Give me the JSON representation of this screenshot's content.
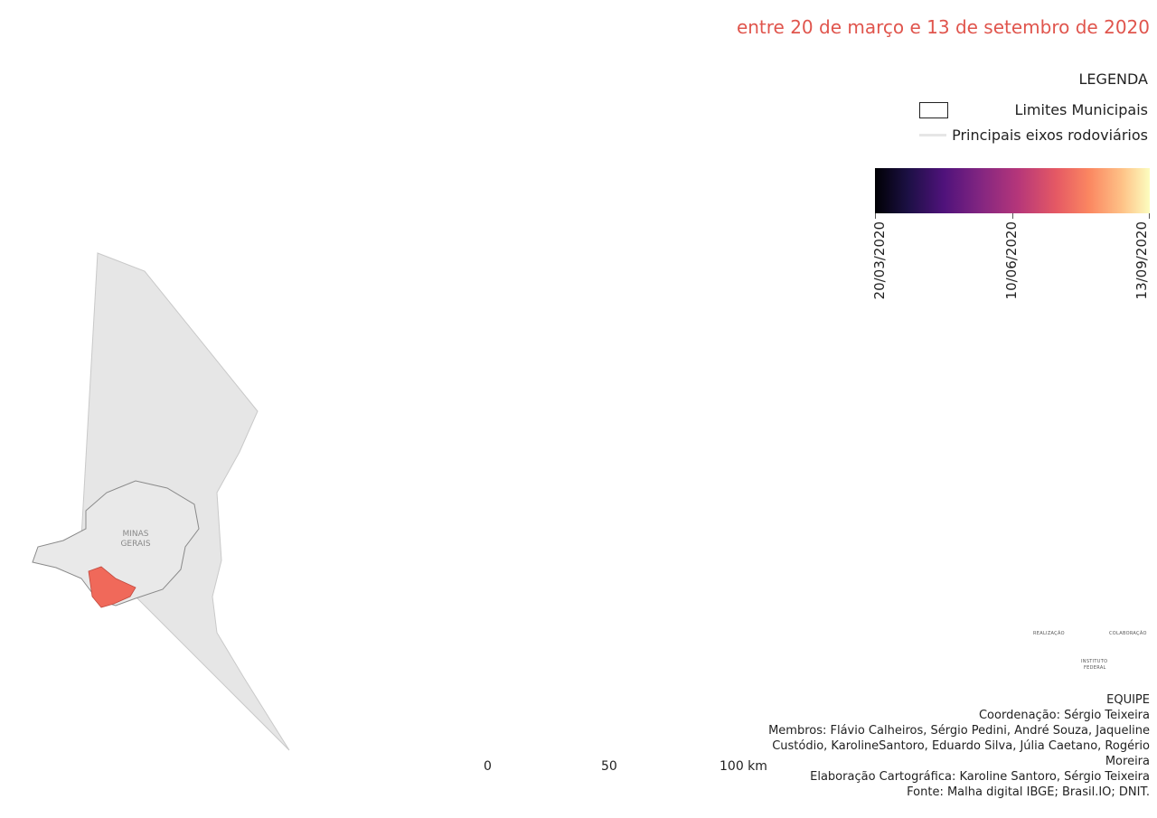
{
  "subtitle": "entre 20 de março e 13 de setembro de 2020",
  "legend": {
    "title": "LEGENDA",
    "items": [
      {
        "label": "Limites Municipais",
        "symbol": "polygon-outline"
      },
      {
        "label": "Principais eixos rodoviários",
        "symbol": "line"
      }
    ],
    "ramp": {
      "colors": [
        "#000004",
        "#1c1044",
        "#4f127b",
        "#812581",
        "#b5367a",
        "#e55964",
        "#fb8761",
        "#fec287",
        "#fcfdbf"
      ],
      "ticks": [
        "20/03/2020",
        "10/06/2020",
        "13/09/2020"
      ]
    }
  },
  "inset": {
    "label_line1": "MINAS",
    "label_line2": "GERAIS",
    "highlight_color": "#f0695a"
  },
  "scale_bar": {
    "labels": [
      "0",
      "50",
      "100 km"
    ]
  },
  "north_arrow": "north-arrow-icon",
  "logos": {
    "realizacao": "REALIZAÇÃO",
    "colaboracao": "COLABORAÇÃO",
    "cidacovid": "CIDACOVID",
    "instituto_line1": "INSTITUTO",
    "instituto_line2": "FEDERAL"
  },
  "credits": {
    "heading": "EQUIPE",
    "coordenacao": "Coordenação: Sérgio Teixeira",
    "membros_line1": "Membros: Flávio Calheiros, Sérgio Pedini, André Souza, Jaqueline",
    "membros_line2": "Custódio, KarolineSantoro, Eduardo Silva, Júlia Caetano, Rogério",
    "membros_line3": "Moreira",
    "elaboracao": "Elaboração Cartográfica: Karoline Santoro, Sérgio Teixeira",
    "fonte": "Fonte: Malha digital IBGE; Brasil.IO; DNIT."
  }
}
